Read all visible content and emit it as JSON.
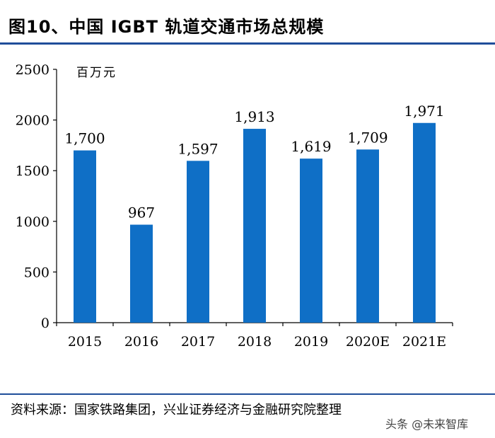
{
  "figure": {
    "title": "图10、中国 IGBT 轨道交通市场总规模",
    "source": "资料来源：国家铁路集团，兴业证券经济与金融研究院整理",
    "watermark": "头条 @未来智库"
  },
  "colors": {
    "bar": "#0f6fc6",
    "rule": "#1f4e9a"
  },
  "chart_data": {
    "type": "bar",
    "title": "图10、中国 IGBT 轨道交通市场总规模",
    "unit_label": "百万元",
    "xlabel": "",
    "ylabel": "百万元",
    "categories": [
      "2015",
      "2016",
      "2017",
      "2018",
      "2019",
      "2020E",
      "2021E"
    ],
    "values": [
      1700,
      967,
      1597,
      1913,
      1619,
      1709,
      1971
    ],
    "value_labels": [
      "1,700",
      "967",
      "1,597",
      "1,913",
      "1,619",
      "1,709",
      "1,971"
    ],
    "yticks": [
      0,
      500,
      1000,
      1500,
      2000,
      2500
    ],
    "ylim": [
      0,
      2500
    ],
    "grid": false,
    "legend": "none"
  }
}
